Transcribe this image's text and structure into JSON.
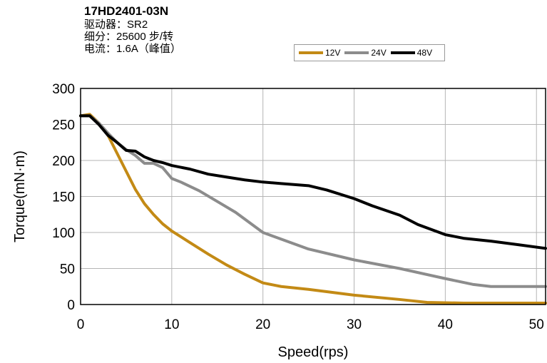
{
  "header": {
    "title": "17HD2401-03N",
    "lines": [
      "驱动器：SR2",
      "细分：25600 步/转",
      "电流：1.6A（峰值）"
    ]
  },
  "chart_data": {
    "type": "line",
    "xlabel": "Speed(rps)",
    "ylabel": "Torque(mN·m)",
    "xlim": [
      0,
      51
    ],
    "ylim": [
      0,
      300
    ],
    "xticks": [
      0,
      10,
      20,
      30,
      40,
      50
    ],
    "yticks": [
      0,
      50,
      100,
      150,
      200,
      250,
      300
    ],
    "grid": true,
    "legend_position": "top-right",
    "series": [
      {
        "name": "12V",
        "color": "#c38a15",
        "stroke_width": 4,
        "points": [
          [
            0,
            262
          ],
          [
            1,
            264
          ],
          [
            2,
            252
          ],
          [
            3,
            235
          ],
          [
            4,
            210
          ],
          [
            5,
            185
          ],
          [
            6,
            160
          ],
          [
            7,
            140
          ],
          [
            8,
            125
          ],
          [
            9,
            112
          ],
          [
            10,
            102
          ],
          [
            12,
            86
          ],
          [
            14,
            70
          ],
          [
            16,
            55
          ],
          [
            18,
            42
          ],
          [
            20,
            30
          ],
          [
            22,
            25
          ],
          [
            25,
            21
          ],
          [
            30,
            13
          ],
          [
            35,
            7
          ],
          [
            38,
            3
          ],
          [
            42,
            2
          ],
          [
            51,
            2
          ]
        ]
      },
      {
        "name": "24V",
        "color": "#8c8c8c",
        "stroke_width": 4,
        "points": [
          [
            0,
            262
          ],
          [
            1,
            262
          ],
          [
            2,
            252
          ],
          [
            3,
            238
          ],
          [
            4,
            225
          ],
          [
            5,
            215
          ],
          [
            6,
            207
          ],
          [
            7,
            196
          ],
          [
            8,
            196
          ],
          [
            9,
            190
          ],
          [
            10,
            175
          ],
          [
            11,
            170
          ],
          [
            13,
            158
          ],
          [
            15,
            143
          ],
          [
            17,
            128
          ],
          [
            20,
            100
          ],
          [
            25,
            77
          ],
          [
            30,
            62
          ],
          [
            35,
            50
          ],
          [
            40,
            36
          ],
          [
            43,
            28
          ],
          [
            45,
            25
          ],
          [
            51,
            25
          ]
        ]
      },
      {
        "name": "48V",
        "color": "#000000",
        "stroke_width": 4,
        "points": [
          [
            0,
            262
          ],
          [
            1,
            262
          ],
          [
            2,
            250
          ],
          [
            3,
            235
          ],
          [
            4,
            225
          ],
          [
            5,
            214
          ],
          [
            6,
            213
          ],
          [
            7,
            205
          ],
          [
            8,
            200
          ],
          [
            9,
            197
          ],
          [
            10,
            193
          ],
          [
            12,
            188
          ],
          [
            14,
            181
          ],
          [
            16,
            177
          ],
          [
            18,
            173
          ],
          [
            20,
            170
          ],
          [
            22,
            168
          ],
          [
            25,
            165
          ],
          [
            27,
            159
          ],
          [
            30,
            147
          ],
          [
            32,
            137
          ],
          [
            35,
            124
          ],
          [
            37,
            111
          ],
          [
            40,
            97
          ],
          [
            42,
            92
          ],
          [
            45,
            88
          ],
          [
            48,
            83
          ],
          [
            51,
            78
          ]
        ]
      }
    ]
  }
}
